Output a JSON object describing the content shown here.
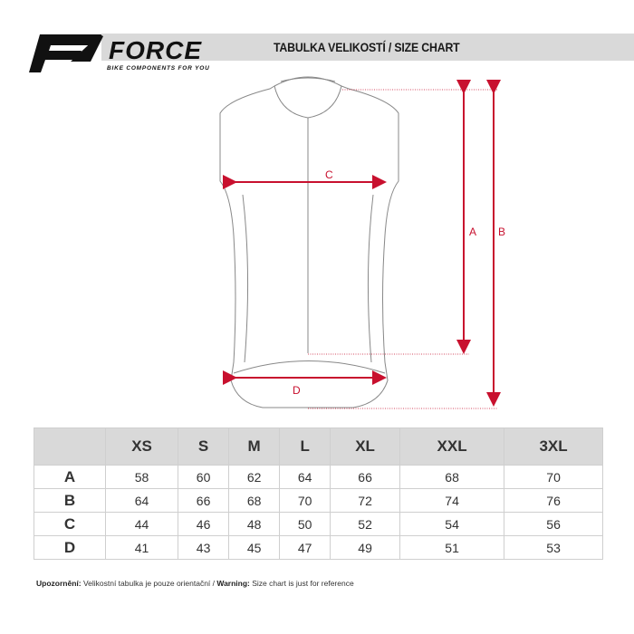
{
  "header": {
    "brand": "FORCE",
    "tagline": "BIKE COMPONENTS FOR YOU",
    "title": "TABULKA VELIKOSTÍ / SIZE CHART"
  },
  "diagram": {
    "labels": {
      "a": "A",
      "b": "B",
      "c": "C",
      "d": "D"
    },
    "accent": "#c8102e"
  },
  "table": {
    "columns": [
      "",
      "XS",
      "S",
      "M",
      "L",
      "XL",
      "XXL",
      "3XL"
    ],
    "rows": [
      {
        "label": "A",
        "values": [
          "58",
          "60",
          "62",
          "64",
          "66",
          "68",
          "70"
        ]
      },
      {
        "label": "B",
        "values": [
          "64",
          "66",
          "68",
          "70",
          "72",
          "74",
          "76"
        ]
      },
      {
        "label": "C",
        "values": [
          "44",
          "46",
          "48",
          "50",
          "52",
          "54",
          "56"
        ]
      },
      {
        "label": "D",
        "values": [
          "41",
          "43",
          "45",
          "47",
          "49",
          "51",
          "53"
        ]
      }
    ]
  },
  "note": {
    "cz_label": "Upozornění:",
    "cz_text": " Velikostní tabulka je pouze orientační / ",
    "en_label": "Warning:",
    "en_text": " Size chart is just for reference"
  }
}
